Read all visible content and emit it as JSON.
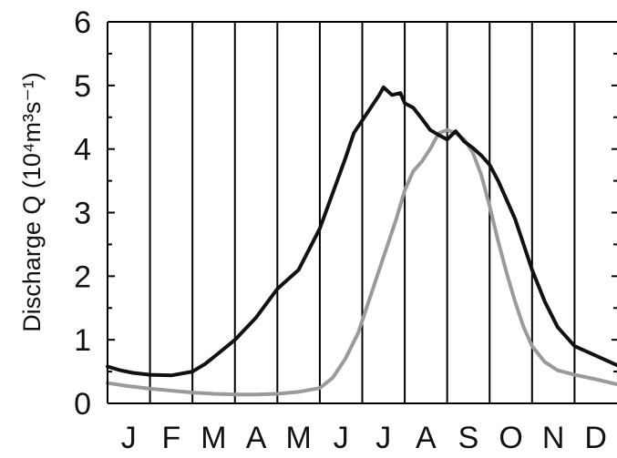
{
  "chart_data": {
    "type": "line",
    "ylabel": "Discharge Q (10⁴m³s⁻¹)",
    "xlabel": "",
    "ylim": [
      0,
      6
    ],
    "yticks": [
      "0",
      "1",
      "2",
      "3",
      "4",
      "5",
      "6"
    ],
    "categories": [
      "J",
      "F",
      "M",
      "A",
      "M",
      "J",
      "J",
      "A",
      "S",
      "O",
      "N",
      "D"
    ],
    "grid": "vertical month dividers",
    "series": [
      {
        "color": "#111111",
        "x": [
          0,
          0.3,
          0.6,
          1.0,
          1.5,
          2.0,
          2.3,
          2.6,
          3.0,
          3.5,
          4.0,
          4.5,
          5.0,
          5.3,
          5.6,
          5.8,
          6.0,
          6.2,
          6.4,
          6.5,
          6.7,
          6.9,
          7.0,
          7.2,
          7.4,
          7.6,
          7.8,
          8.0,
          8.2,
          8.4,
          8.6,
          8.8,
          9.0,
          9.2,
          9.4,
          9.6,
          9.8,
          10.0,
          10.3,
          10.6,
          11.0,
          11.5,
          12.0
        ],
        "values": [
          0.58,
          0.52,
          0.48,
          0.45,
          0.44,
          0.5,
          0.62,
          0.78,
          1.0,
          1.35,
          1.8,
          2.1,
          2.75,
          3.3,
          3.85,
          4.25,
          4.45,
          4.65,
          4.85,
          4.97,
          4.85,
          4.88,
          4.72,
          4.65,
          4.48,
          4.3,
          4.22,
          4.15,
          4.28,
          4.12,
          4.02,
          3.9,
          3.75,
          3.5,
          3.2,
          2.9,
          2.5,
          2.1,
          1.6,
          1.2,
          0.9,
          0.75,
          0.6
        ]
      },
      {
        "color": "#9a9a9a",
        "x": [
          0,
          0.5,
          1.0,
          1.5,
          2.0,
          2.5,
          3.0,
          3.5,
          4.0,
          4.5,
          5.0,
          5.3,
          5.6,
          5.9,
          6.2,
          6.5,
          6.8,
          7.0,
          7.2,
          7.4,
          7.6,
          7.8,
          8.0,
          8.2,
          8.4,
          8.6,
          8.8,
          9.0,
          9.2,
          9.4,
          9.6,
          9.8,
          10.0,
          10.3,
          10.6,
          11.0,
          11.5,
          12.0
        ],
        "values": [
          0.32,
          0.27,
          0.23,
          0.2,
          0.17,
          0.15,
          0.14,
          0.14,
          0.15,
          0.18,
          0.24,
          0.4,
          0.7,
          1.1,
          1.7,
          2.3,
          2.9,
          3.35,
          3.65,
          3.8,
          4.0,
          4.25,
          4.3,
          4.25,
          4.15,
          3.95,
          3.6,
          3.1,
          2.55,
          2.05,
          1.6,
          1.2,
          0.9,
          0.65,
          0.52,
          0.45,
          0.38,
          0.3
        ]
      }
    ]
  }
}
